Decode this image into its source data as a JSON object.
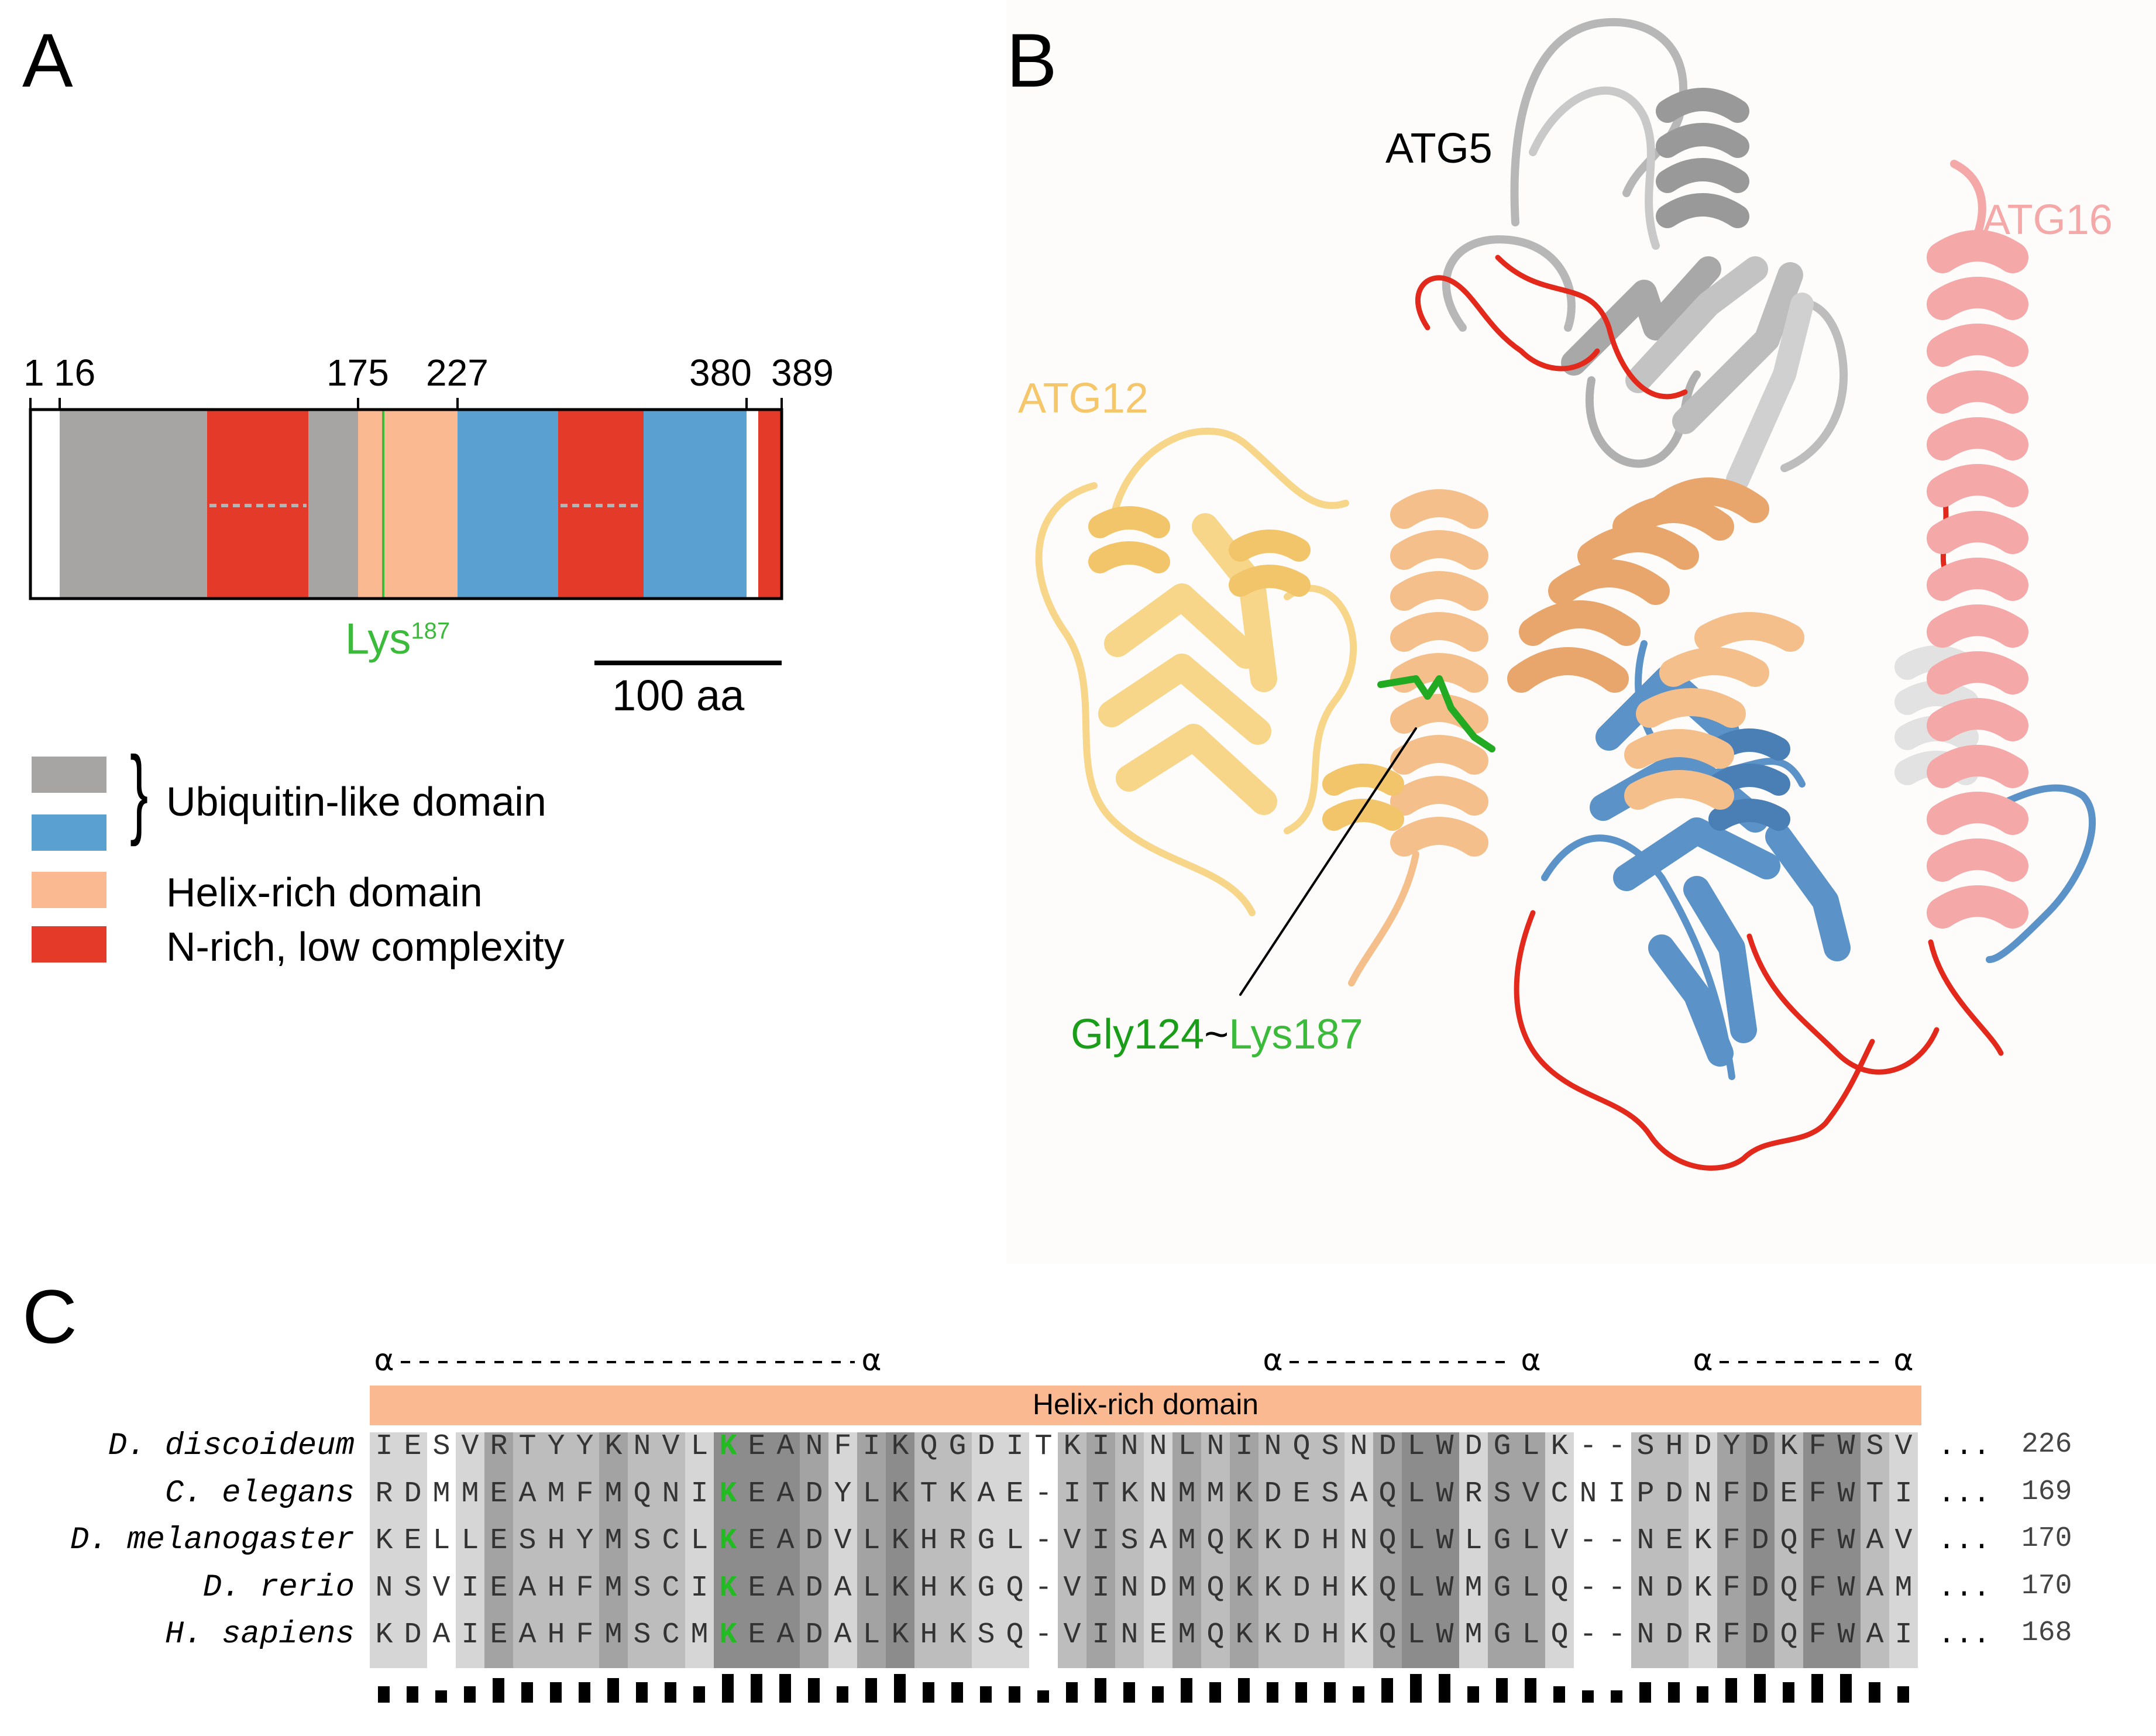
{
  "panel_a": {
    "letter": "A",
    "tick_labels": [
      "1",
      "16",
      "175",
      "227",
      "380",
      "389"
    ],
    "site_label": "Lys",
    "site_superscript": "187",
    "scale_bar_label": "100 aa",
    "legend_group_brace": "}",
    "legend": [
      {
        "label": "",
        "color": "#a7a5a3"
      },
      {
        "label": "Ubiquitin-like domain",
        "color": "#5aa1d2"
      },
      {
        "label": "Helix-rich domain",
        "color": "#fbb992"
      },
      {
        "label": "N-rich, low complexity",
        "color": "#e33a2a"
      }
    ]
  },
  "panel_b": {
    "letter": "B",
    "labels": {
      "atg5": "ATG5",
      "atg16": "ATG16",
      "atg12": "ATG12",
      "link_gly": "Gly124",
      "link_tilde": "~",
      "link_lys": "Lys187"
    },
    "colors": {
      "atg12": "#f7d68a",
      "atg16": "#f4a8a8",
      "atg5_gray": "#b7b7b7",
      "blue": "#5b93c9",
      "peach": "#f4bf8a",
      "red": "#e2291b",
      "green": "#22aa22"
    }
  },
  "panel_c": {
    "letter": "C",
    "ss_markers": [
      "α",
      "α",
      "α",
      "α",
      "α",
      "α"
    ],
    "domain_bar_label": "Helix-rich domain",
    "ellipsis": "...",
    "rows": [
      {
        "species": "D. discoideum",
        "seq": "IESVRTYYKNVLKEANFIKQGDITKINNLNINQSNDLWDGLK--SHDYDKFWSV",
        "end": "226"
      },
      {
        "species": "C. elegans",
        "seq": "RDMMEAMFMQNIKEADYLKTKAE-ITKNMMKDESAQLWRSVCNIPDNFDEFWTI",
        "end": "169"
      },
      {
        "species": "D. melanogaster",
        "seq": "KELLESHYMSCLKEADVLKHRGL-VISAMQKKDHNQLWLGLV--NEKFDQFWAV",
        "end": "170"
      },
      {
        "species": "D. rerio",
        "seq": "NSVIEAHFMSCIKEADALKHKGQ-VINDMQKKDHKQLWMGLQ--NDKFDQFWAM",
        "end": "170"
      },
      {
        "species": "H. sapiens",
        "seq": "KDAIEAHFMSCMKEADALKHKSQ-VINEMQKKDHKQLWMGLQ--NDRFDQFWAI",
        "end": "168"
      }
    ],
    "highlight_column_index": 12,
    "highlight_color": "#22bb22"
  }
}
